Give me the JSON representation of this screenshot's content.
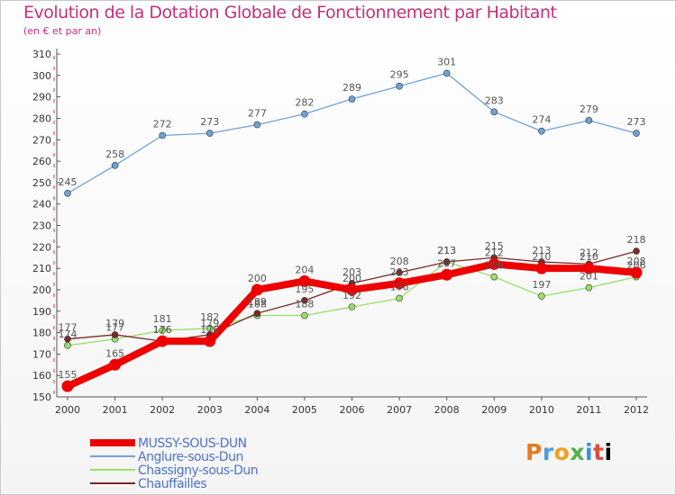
{
  "title": "Evolution de la Dotation Globale de Fonctionnement par Habitant",
  "subtitle": "(en € et par an)",
  "logo_text": "Proxiti",
  "chart_data": {
    "type": "line",
    "x": [
      2000,
      2001,
      2002,
      2003,
      2004,
      2005,
      2006,
      2007,
      2008,
      2009,
      2010,
      2011,
      2012
    ],
    "ylim": [
      150,
      310
    ],
    "yticks": [
      150,
      160,
      170,
      180,
      190,
      200,
      210,
      220,
      230,
      240,
      250,
      260,
      270,
      280,
      290,
      300,
      310
    ],
    "grid": false,
    "legend_position": "bottom-left",
    "series": [
      {
        "name": "MUSSY-SOUS-DUN",
        "color": "#ee0000",
        "values": [
          155,
          165,
          176,
          176,
          200,
          204,
          200,
          203,
          207,
          212,
          210,
          210,
          208
        ]
      },
      {
        "name": "Anglure-sous-Dun",
        "color": "#6fa2d6",
        "values": [
          245,
          258,
          272,
          273,
          277,
          282,
          289,
          295,
          301,
          283,
          274,
          279,
          273
        ]
      },
      {
        "name": "Chassigny-sous-Dun",
        "color": "#99e066",
        "values": [
          174,
          177,
          181,
          182,
          188,
          188,
          192,
          196,
          213,
          206,
          197,
          201,
          206
        ]
      },
      {
        "name": "Chauffailles",
        "color": "#7a2a2a",
        "values": [
          177,
          179,
          176,
          179,
          189,
          195,
          203,
          208,
          213,
          215,
          213,
          212,
          218
        ]
      }
    ]
  }
}
